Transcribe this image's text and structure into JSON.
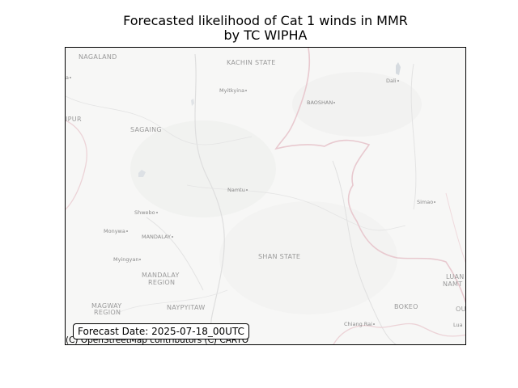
{
  "title": {
    "line1": "Forecasted likelihood of Cat 1 winds in MMR",
    "line2": "by TC WIPHA"
  },
  "map": {
    "regions": {
      "nagaland": "NAGALAND",
      "kachin": "KACHIN STATE",
      "manipur": "IPUR",
      "sagaing": "SAGAING",
      "shan": "SHAN STATE",
      "mandalay_region_1": "MANDALAY",
      "mandalay_region_2": "REGION",
      "magway_1": "MAGWAY",
      "magway_2": "REGION",
      "naypyitaw": "NAYPYITAW",
      "bokeo": "BOKEO",
      "luang_1": "LUAN",
      "luang_2": "NAMT",
      "ou": "OU"
    },
    "cities": {
      "myitkyina": "Myitkyina",
      "baoshan": "BAOSHAN",
      "dali": "Dali",
      "namtu": "Namtu",
      "shwebo": "Shwebo",
      "monywa": "Monywa",
      "mandalay": "MANDALAY",
      "myingyan": "Myingyan",
      "simao": "Simao",
      "chiang_rai": "Chiang Rai",
      "luang_edge": "Lua",
      "left_edge": "a"
    }
  },
  "forecast_date_label": "Forecast Date: 2025-07-18_00UTC",
  "attribution": "(C) OpenStreetMap contributors (C) CARTO",
  "colors": {
    "map_background": "#f7f7f6",
    "border_pink": "#e8c9cf",
    "river_grey": "#dcdcdc",
    "label_grey": "#8b8b8b"
  }
}
